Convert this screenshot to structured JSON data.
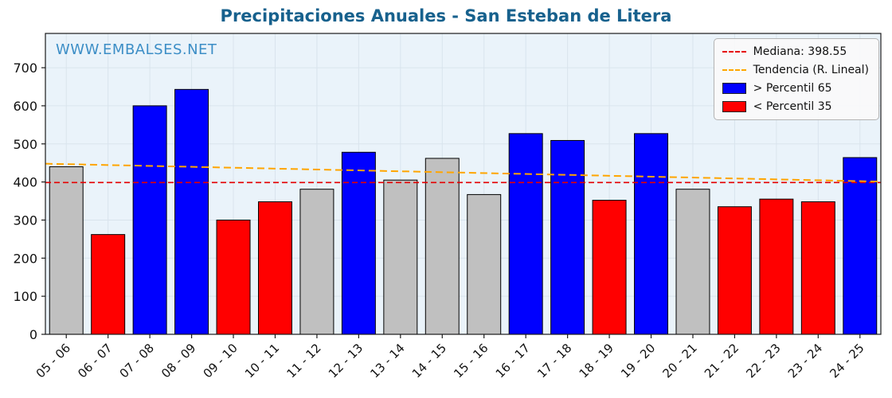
{
  "title": "Precipitaciones Anuales - San Esteban de Litera",
  "watermark": "WWW.EMBALSES.NET",
  "legend": {
    "median_label": "Mediana: 398.55",
    "trend_label": "Tendencia (R. Lineal)",
    "high_label": "> Percentil 65",
    "low_label": "< Percentil 35"
  },
  "chart_data": {
    "type": "bar",
    "title": "Precipitaciones Anuales - San Esteban de Litera",
    "xlabel": "",
    "ylabel": "",
    "categories": [
      "05 - 06",
      "06 - 07",
      "07 - 08",
      "08 - 09",
      "09 - 10",
      "10 - 11",
      "11 - 12",
      "12 - 13",
      "13 - 14",
      "14 - 15",
      "15 - 16",
      "16 - 17",
      "17 - 18",
      "18 - 19",
      "19 - 20",
      "20 - 21",
      "21 - 22",
      "22 - 23",
      "23 - 24",
      "24 - 25"
    ],
    "values": [
      440,
      262,
      600,
      643,
      300,
      348,
      381,
      478,
      405,
      462,
      367,
      527,
      509,
      352,
      527,
      381,
      335,
      355,
      348,
      464
    ],
    "classes": [
      "mid",
      "low",
      "high",
      "high",
      "low",
      "low",
      "mid",
      "high",
      "mid",
      "mid",
      "mid",
      "high",
      "high",
      "low",
      "high",
      "mid",
      "low",
      "low",
      "low",
      "high"
    ],
    "median": 398.55,
    "trend": {
      "start": 448,
      "end": 401
    },
    "ylim": [
      0,
      790
    ],
    "yticks": [
      0,
      100,
      200,
      300,
      400,
      500,
      600,
      700
    ],
    "grid": true,
    "legend_position": "upper right",
    "colors": {
      "high": "#0000ff",
      "low": "#ff0000",
      "mid": "#c0c0c0",
      "bar_edge": "#000000",
      "median_line": "#e60000",
      "trend_line": "#ffa500",
      "plot_bg": "#eaf3fa",
      "grid_line": "#d9e4ed",
      "axis": "#1a1a1a",
      "tick_text": "#111111"
    }
  }
}
